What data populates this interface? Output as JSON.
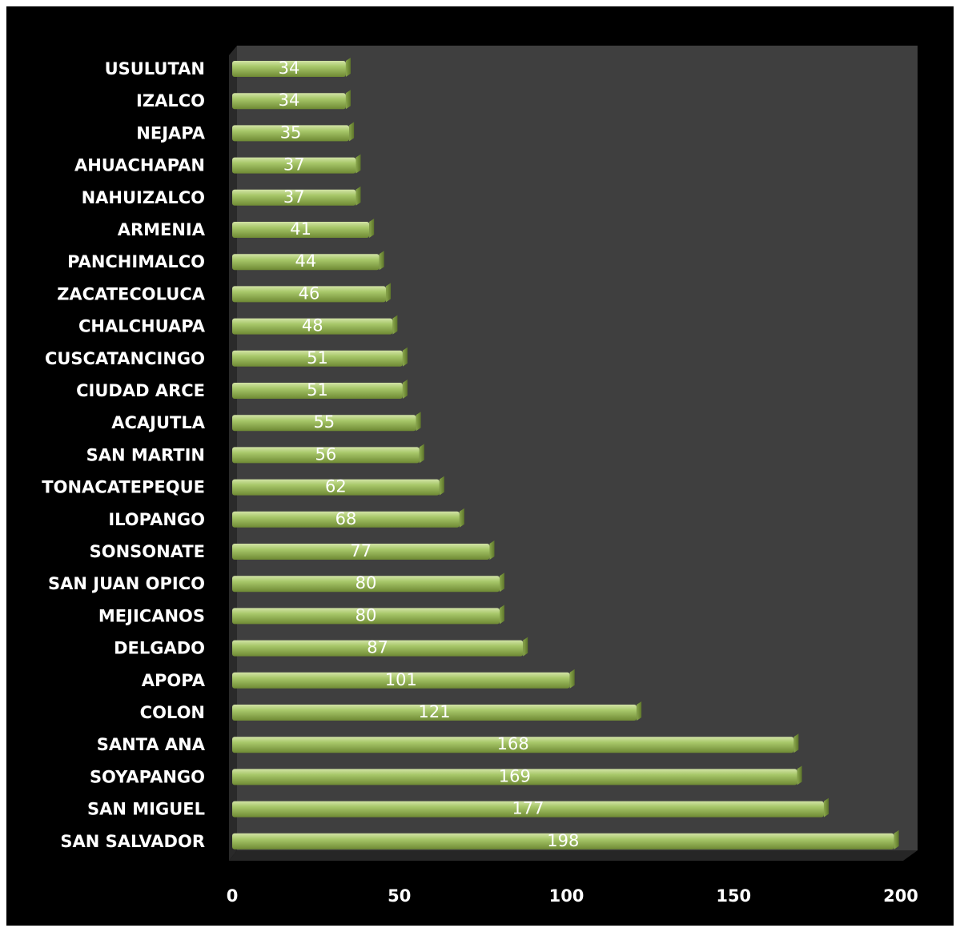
{
  "chart_data": {
    "type": "bar",
    "orientation": "horizontal",
    "title": "",
    "xlabel": "",
    "ylabel": "",
    "categories": [
      "USULUTAN",
      "IZALCO",
      "NEJAPA",
      "AHUACHAPAN",
      "NAHUIZALCO",
      "ARMENIA",
      "PANCHIMALCO",
      "ZACATECOLUCA",
      "CHALCHUAPA",
      "CUSCATANCINGO",
      "CIUDAD ARCE",
      "ACAJUTLA",
      "SAN MARTIN",
      "TONACATEPEQUE",
      "ILOPANGO",
      "SONSONATE",
      "SAN JUAN OPICO",
      "MEJICANOS",
      "DELGADO",
      "APOPA",
      "COLON",
      "SANTA ANA",
      "SOYAPANGO",
      "SAN MIGUEL",
      "SAN SALVADOR"
    ],
    "values": [
      34,
      34,
      35,
      37,
      37,
      41,
      44,
      46,
      48,
      51,
      51,
      55,
      56,
      62,
      68,
      77,
      80,
      80,
      87,
      101,
      121,
      168,
      169,
      177,
      198
    ],
    "xlim": [
      0,
      200
    ],
    "xticks": [
      "0",
      "50",
      "100",
      "150",
      "200"
    ],
    "grid": false,
    "legend": "none",
    "colors": {
      "background": "#000000",
      "plot_area": "#3f3f3f",
      "bar": "#9bbb59",
      "text": "#ffffff"
    }
  }
}
